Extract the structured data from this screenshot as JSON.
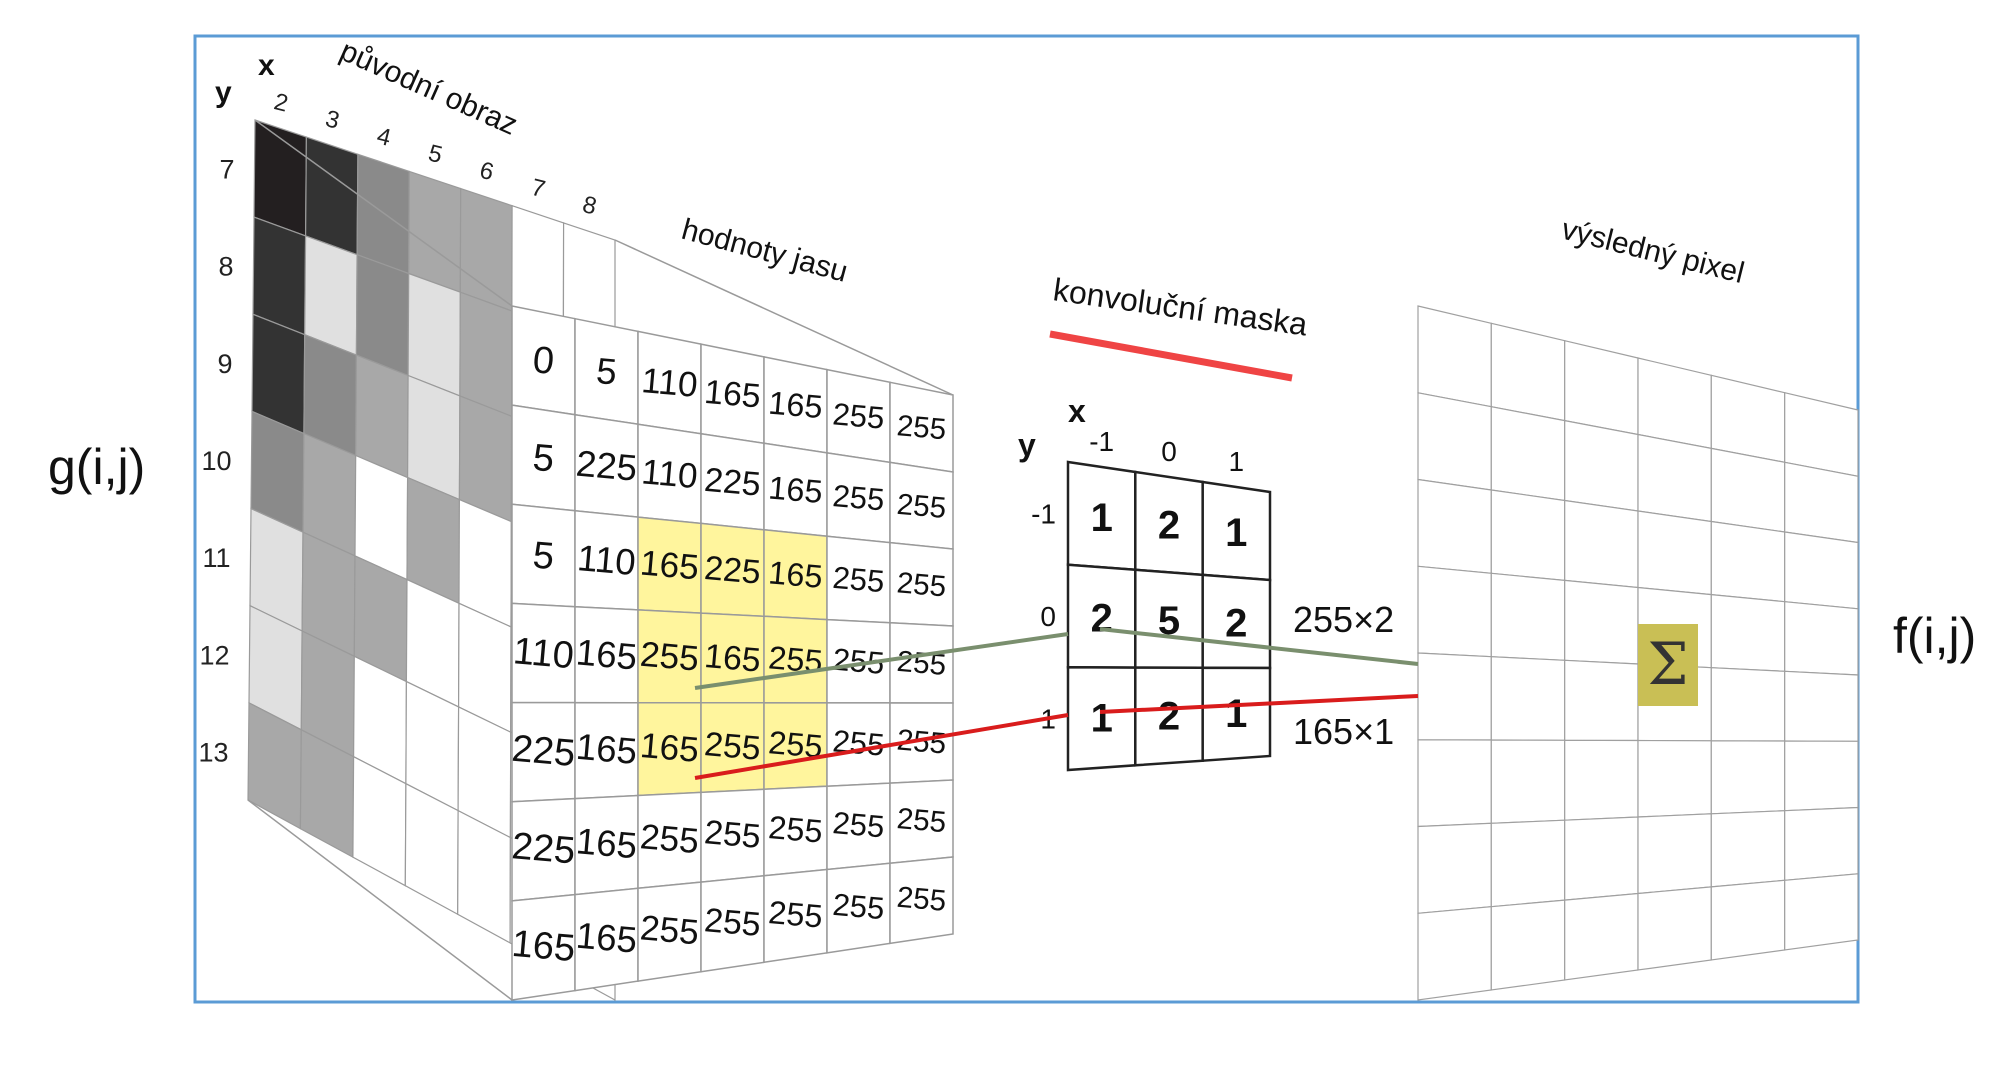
{
  "labels": {
    "g_label": "g(i,j)",
    "f_label": "f(i,j)",
    "original_title": "původní obraz",
    "brightness_title": "hodnoty jasu",
    "mask_title": "konvoluční maska",
    "result_title": "výsledný pixel",
    "sum_symbol": "Σ",
    "term_top": "255×2",
    "term_bottom": "165×1"
  },
  "original_image": {
    "x_axis_letter": "x",
    "y_axis_letter": "y",
    "x_ticks": [
      "2",
      "3",
      "4",
      "5",
      "6",
      "7",
      "8"
    ],
    "y_ticks": [
      "7",
      "8",
      "9",
      "10",
      "11",
      "12",
      "13"
    ]
  },
  "brightness_values": [
    [
      "0",
      "5",
      "110",
      "165",
      "165",
      "255",
      "255"
    ],
    [
      "5",
      "225",
      "110",
      "225",
      "165",
      "255",
      "255"
    ],
    [
      "5",
      "110",
      "165",
      "225",
      "165",
      "255",
      "255"
    ],
    [
      "110",
      "165",
      "255",
      "165",
      "255",
      "255",
      "255"
    ],
    [
      "225",
      "165",
      "165",
      "255",
      "255",
      "255",
      "255"
    ],
    [
      "225",
      "165",
      "255",
      "255",
      "255",
      "255",
      "255"
    ],
    [
      "165",
      "165",
      "255",
      "255",
      "255",
      "255",
      "255"
    ]
  ],
  "mask": {
    "x_axis_letter": "x",
    "y_axis_letter": "y",
    "x_ticks": [
      "-1",
      "0",
      "1"
    ],
    "y_ticks": [
      "-1",
      "0",
      "1"
    ],
    "values": [
      [
        "1",
        "2",
        "1"
      ],
      [
        "2",
        "5",
        "2"
      ],
      [
        "1",
        "2",
        "1"
      ]
    ]
  },
  "colors": {
    "frame": "#5b9bd5",
    "highlight": "#fff59d",
    "sum_box": "#c9bf55",
    "green_line": "#7a8f6e",
    "red_line": "#d91c1c",
    "mask_underline": "#ef4444"
  }
}
